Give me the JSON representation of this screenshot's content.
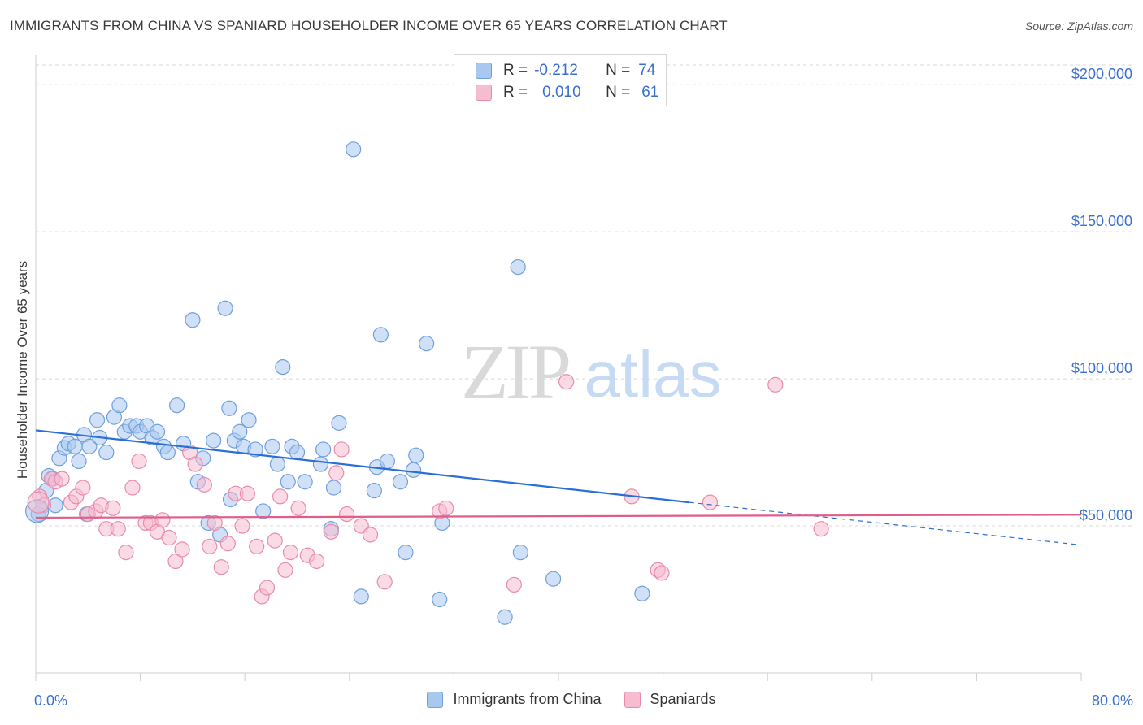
{
  "title": "IMMIGRANTS FROM CHINA VS SPANIARD HOUSEHOLDER INCOME OVER 65 YEARS CORRELATION CHART",
  "source": "Source: ZipAtlas.com",
  "watermark": {
    "zip": "ZIP",
    "atlas": "atlas"
  },
  "stats": {
    "r_label": "R =",
    "n_label": "N =",
    "china": {
      "r": "-0.212",
      "n": "74"
    },
    "spaniards": {
      "r": "0.010",
      "n": "61"
    }
  },
  "colors": {
    "china_fill": "#a9c8f0",
    "china_stroke": "#6f9fdc",
    "china_line": "#2a6fd6",
    "spain_fill": "#f6bcd0",
    "spain_stroke": "#e98bab",
    "spain_line": "#e05d8a",
    "axis_text": "#3a6fd0",
    "grid": "#d8d8d8"
  },
  "chart_data": {
    "type": "scatter",
    "title": "IMMIGRANTS FROM CHINA VS SPANIARD HOUSEHOLDER INCOME OVER 65 YEARS CORRELATION CHART",
    "xlabel": "",
    "ylabel": "Householder Income Over 65 years",
    "xlim": [
      0,
      80
    ],
    "ylim": [
      0,
      210000
    ],
    "x_tick_labels": [
      "0.0%",
      "80.0%"
    ],
    "y_ticks": [
      50000,
      100000,
      150000,
      200000
    ],
    "y_tick_labels": [
      "$50,000",
      "$100,000",
      "$150,000",
      "$200,000"
    ],
    "grid": true,
    "legend_position": "bottom-center",
    "series": [
      {
        "name": "Immigrants from China",
        "trend": {
          "x0": 0,
          "y0": 82500,
          "x1": 50,
          "y1": 58000,
          "dashed_to_x": 80,
          "dashed_to_y": 43500
        },
        "points": [
          [
            0.2,
            54000
          ],
          [
            0.8,
            62000
          ],
          [
            1.0,
            67000
          ],
          [
            1.3,
            66000
          ],
          [
            1.8,
            73000
          ],
          [
            2.2,
            76500
          ],
          [
            2.5,
            78000
          ],
          [
            3.0,
            77000
          ],
          [
            3.3,
            72000
          ],
          [
            3.7,
            81000
          ],
          [
            4.1,
            77000
          ],
          [
            4.7,
            86000
          ],
          [
            4.9,
            80000
          ],
          [
            5.4,
            75000
          ],
          [
            6.0,
            87000
          ],
          [
            6.4,
            91000
          ],
          [
            6.8,
            82000
          ],
          [
            7.2,
            84000
          ],
          [
            7.7,
            84000
          ],
          [
            8.0,
            82000
          ],
          [
            8.5,
            84000
          ],
          [
            8.9,
            80000
          ],
          [
            9.3,
            82000
          ],
          [
            9.8,
            77000
          ],
          [
            10.1,
            75000
          ],
          [
            10.8,
            91000
          ],
          [
            11.3,
            78000
          ],
          [
            12.0,
            120000
          ],
          [
            12.4,
            65000
          ],
          [
            12.8,
            73000
          ],
          [
            13.2,
            51000
          ],
          [
            13.6,
            79000
          ],
          [
            14.1,
            47000
          ],
          [
            14.5,
            124000
          ],
          [
            14.8,
            90000
          ],
          [
            15.2,
            79000
          ],
          [
            15.6,
            82000
          ],
          [
            15.9,
            77000
          ],
          [
            16.3,
            86000
          ],
          [
            16.8,
            76000
          ],
          [
            17.4,
            55000
          ],
          [
            18.1,
            77000
          ],
          [
            18.5,
            71000
          ],
          [
            18.9,
            104000
          ],
          [
            19.3,
            65000
          ],
          [
            19.6,
            77000
          ],
          [
            20.0,
            75000
          ],
          [
            20.6,
            65000
          ],
          [
            21.8,
            71000
          ],
          [
            22.0,
            76000
          ],
          [
            22.6,
            49000
          ],
          [
            22.8,
            63000
          ],
          [
            23.2,
            85000
          ],
          [
            24.3,
            178000
          ],
          [
            24.9,
            26000
          ],
          [
            25.9,
            62000
          ],
          [
            26.1,
            70000
          ],
          [
            26.4,
            115000
          ],
          [
            26.9,
            72000
          ],
          [
            27.9,
            65000
          ],
          [
            28.3,
            41000
          ],
          [
            28.9,
            69000
          ],
          [
            29.1,
            74000
          ],
          [
            29.9,
            112000
          ],
          [
            30.9,
            25000
          ],
          [
            31.1,
            51000
          ],
          [
            35.9,
            19000
          ],
          [
            36.9,
            138000
          ],
          [
            37.1,
            41000
          ],
          [
            39.6,
            32000
          ],
          [
            46.4,
            27000
          ],
          [
            1.5,
            57000
          ],
          [
            3.9,
            54000
          ],
          [
            14.9,
            59000
          ]
        ]
      },
      {
        "name": "Spaniards",
        "trend": {
          "x0": 0,
          "y0": 52800,
          "x1": 80,
          "y1": 53800
        },
        "points": [
          [
            0.3,
            60000
          ],
          [
            0.6,
            57000
          ],
          [
            1.2,
            66000
          ],
          [
            1.5,
            65000
          ],
          [
            2.0,
            66000
          ],
          [
            2.7,
            58000
          ],
          [
            3.1,
            60000
          ],
          [
            3.6,
            63000
          ],
          [
            4.0,
            54000
          ],
          [
            4.6,
            55000
          ],
          [
            5.0,
            57000
          ],
          [
            5.4,
            49000
          ],
          [
            5.9,
            56000
          ],
          [
            6.3,
            49000
          ],
          [
            6.9,
            41000
          ],
          [
            7.4,
            63000
          ],
          [
            7.9,
            72000
          ],
          [
            8.4,
            51000
          ],
          [
            8.8,
            51000
          ],
          [
            9.3,
            48000
          ],
          [
            9.7,
            52000
          ],
          [
            10.2,
            46000
          ],
          [
            10.7,
            38000
          ],
          [
            11.2,
            42000
          ],
          [
            11.8,
            75000
          ],
          [
            12.2,
            71000
          ],
          [
            12.9,
            64000
          ],
          [
            13.3,
            43000
          ],
          [
            13.7,
            51000
          ],
          [
            14.2,
            36000
          ],
          [
            14.7,
            44000
          ],
          [
            15.3,
            61000
          ],
          [
            15.8,
            50000
          ],
          [
            16.2,
            61000
          ],
          [
            16.9,
            43000
          ],
          [
            17.3,
            26000
          ],
          [
            17.7,
            29000
          ],
          [
            18.3,
            45000
          ],
          [
            18.7,
            60000
          ],
          [
            19.1,
            35000
          ],
          [
            19.5,
            41000
          ],
          [
            20.1,
            56000
          ],
          [
            20.8,
            40000
          ],
          [
            21.5,
            38000
          ],
          [
            22.6,
            48000
          ],
          [
            23.0,
            68000
          ],
          [
            23.4,
            76000
          ],
          [
            23.8,
            54000
          ],
          [
            24.9,
            50000
          ],
          [
            25.6,
            47000
          ],
          [
            26.7,
            31000
          ],
          [
            30.9,
            55000
          ],
          [
            31.4,
            56000
          ],
          [
            36.6,
            30000
          ],
          [
            40.6,
            99000
          ],
          [
            45.6,
            60000
          ],
          [
            47.6,
            35000
          ],
          [
            47.9,
            34000
          ],
          [
            51.6,
            58000
          ],
          [
            56.6,
            98000
          ],
          [
            60.1,
            49000
          ]
        ]
      }
    ]
  }
}
